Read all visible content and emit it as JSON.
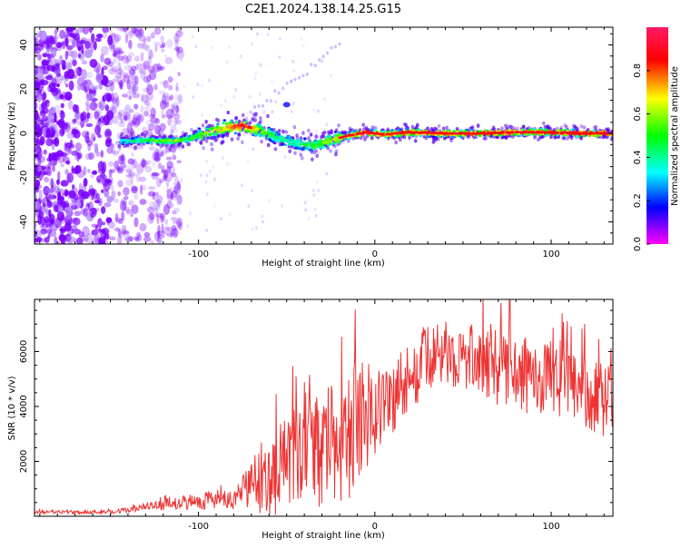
{
  "title": "C2E1.2024.138.14.25.G15",
  "colors": {
    "snr_line": "#ee3333",
    "points": "#7a00ff",
    "colormap": [
      "#ff00ff",
      "#0000ff",
      "#00ffff",
      "#00ff00",
      "#ffff00",
      "#ff0000",
      "#ff1a66"
    ]
  },
  "chart_data": [
    {
      "type": "heatmap",
      "title": "",
      "xlabel": "Height of straight line (km)",
      "ylabel": "Frequency (Hz)",
      "xlim": [
        -193,
        135
      ],
      "ylim": [
        -50,
        48
      ],
      "x_ticks": [
        -100,
        0,
        100
      ],
      "y_ticks": [
        -40,
        -20,
        0,
        20,
        40
      ],
      "colorbar": {
        "label": "Normalized spectral amplitude",
        "range": [
          0.0,
          1.0
        ],
        "ticks": [
          0.0,
          0.2,
          0.4,
          0.6,
          0.8
        ]
      },
      "ridge": {
        "x": [
          -145,
          -130,
          -115,
          -105,
          -95,
          -85,
          -75,
          -65,
          -55,
          -45,
          -35,
          -25,
          -15,
          -5,
          5,
          20,
          40,
          60,
          80,
          100,
          120,
          135
        ],
        "freq": [
          -3.5,
          -3.2,
          -3.5,
          -2.5,
          0.5,
          2.5,
          3.5,
          1.5,
          -2.0,
          -4.5,
          -5.5,
          -3.0,
          -1.0,
          0.5,
          -0.5,
          0.5,
          0.0,
          0.0,
          0.5,
          0.5,
          0.0,
          0.0
        ],
        "amplitude": [
          0.3,
          0.5,
          0.6,
          0.5,
          0.6,
          0.7,
          0.9,
          0.6,
          0.4,
          0.4,
          0.5,
          0.6,
          0.75,
          0.9,
          0.85,
          0.9,
          0.85,
          0.9,
          0.85,
          0.9,
          0.95,
          0.9
        ]
      },
      "noise_region": {
        "x_range": [
          -193,
          -120
        ],
        "freq_range": [
          -50,
          48
        ]
      }
    },
    {
      "type": "line",
      "title": "",
      "xlabel": "Height of straight line (km)",
      "ylabel": "SNR (10 * v/v)",
      "xlim": [
        -193,
        135
      ],
      "ylim": [
        0,
        7900
      ],
      "x_ticks": [
        -100,
        0,
        100
      ],
      "y_ticks": [
        2000,
        4000,
        6000
      ],
      "envelope": {
        "x": [
          -193,
          -160,
          -145,
          -130,
          -115,
          -100,
          -90,
          -80,
          -72,
          -65,
          -55,
          -45,
          -35,
          -25,
          -15,
          -8,
          0,
          10,
          20,
          30,
          40,
          50,
          60,
          70,
          80,
          90,
          100,
          110,
          120,
          130,
          135
        ],
        "mean": [
          150,
          150,
          180,
          330,
          450,
          550,
          650,
          500,
          1100,
          1350,
          1700,
          2200,
          2250,
          2600,
          3000,
          3600,
          3900,
          4300,
          5100,
          5700,
          6000,
          5700,
          5800,
          5400,
          5200,
          5100,
          5000,
          4800,
          4600,
          4200,
          4300
        ],
        "spread": [
          60,
          70,
          90,
          150,
          200,
          300,
          400,
          300,
          900,
          1300,
          1700,
          1900,
          2000,
          2200,
          2400,
          2200,
          1800,
          1500,
          1300,
          1200,
          1100,
          1200,
          1300,
          1400,
          1400,
          1400,
          1400,
          1300,
          1400,
          1300,
          1200
        ]
      }
    }
  ]
}
